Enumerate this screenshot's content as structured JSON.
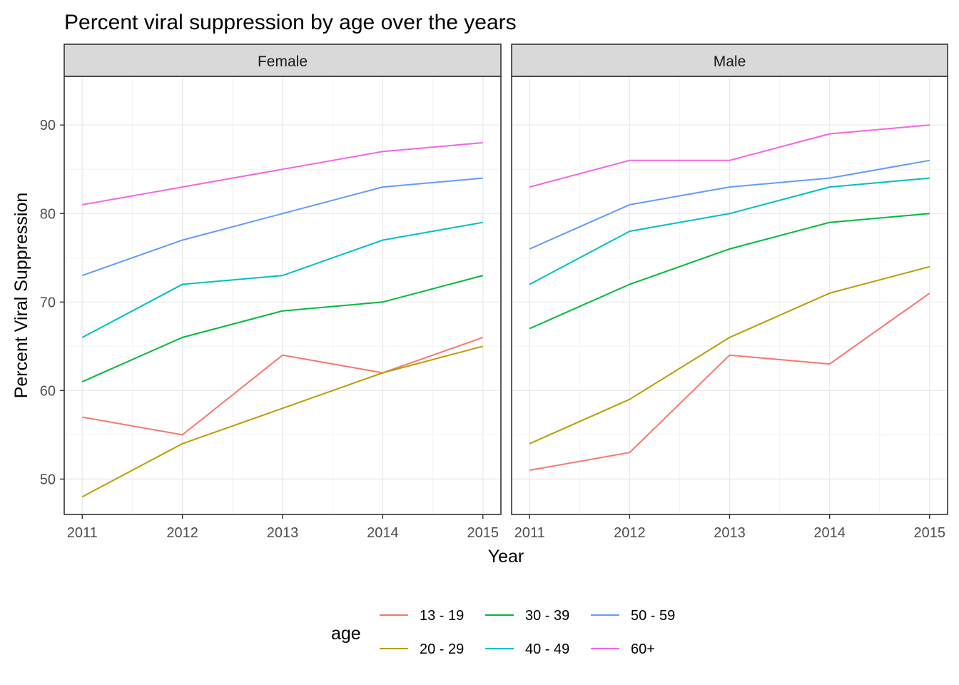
{
  "chart_data": {
    "type": "line",
    "title": "Percent viral suppression by age over the years",
    "xlabel": "Year",
    "ylabel": "Percent Viral Suppression",
    "x": [
      2011,
      2012,
      2013,
      2014,
      2015
    ],
    "x_tick_labels": [
      "2011",
      "2012",
      "2013",
      "2014",
      "2015"
    ],
    "y_ticks": [
      50,
      60,
      70,
      80,
      90
    ],
    "y_tick_labels": [
      "50",
      "60",
      "70",
      "80",
      "90"
    ],
    "xlim": [
      2010.82,
      2015.18
    ],
    "ylim": [
      46,
      95.5
    ],
    "grid": true,
    "facets": [
      {
        "label": "Female",
        "series": [
          {
            "name": "13 - 19",
            "values": [
              57,
              55,
              64,
              62,
              66
            ]
          },
          {
            "name": "20 - 29",
            "values": [
              48,
              54,
              58,
              62,
              65
            ]
          },
          {
            "name": "30 - 39",
            "values": [
              61,
              66,
              69,
              70,
              73
            ]
          },
          {
            "name": "40 - 49",
            "values": [
              66,
              72,
              73,
              77,
              79
            ]
          },
          {
            "name": "50 - 59",
            "values": [
              73,
              77,
              80,
              83,
              84
            ]
          },
          {
            "name": "60+",
            "values": [
              81,
              83,
              85,
              87,
              88
            ]
          }
        ]
      },
      {
        "label": "Male",
        "series": [
          {
            "name": "13 - 19",
            "values": [
              51,
              53,
              64,
              63,
              71
            ]
          },
          {
            "name": "20 - 29",
            "values": [
              54,
              59,
              66,
              71,
              74
            ]
          },
          {
            "name": "30 - 39",
            "values": [
              67,
              72,
              76,
              79,
              80
            ]
          },
          {
            "name": "40 - 49",
            "values": [
              72,
              78,
              80,
              83,
              84
            ]
          },
          {
            "name": "50 - 59",
            "values": [
              76,
              81,
              83,
              84,
              86
            ]
          },
          {
            "name": "60+",
            "values": [
              83,
              86,
              86,
              89,
              90
            ]
          }
        ]
      }
    ],
    "legend": {
      "title": "age",
      "placement": "bottom",
      "entries": [
        {
          "name": "13 - 19",
          "color": "#F8766D"
        },
        {
          "name": "20 - 29",
          "color": "#B79F00"
        },
        {
          "name": "30 - 39",
          "color": "#00BA38"
        },
        {
          "name": "40 - 49",
          "color": "#00BFC4"
        },
        {
          "name": "50 - 59",
          "color": "#619CFF"
        },
        {
          "name": "60+",
          "color": "#F564E3"
        }
      ]
    },
    "colors": {
      "panel_border": "#333333",
      "strip_fill": "#D9D9D9",
      "grid_major": "#EBEBEB",
      "grid_minor": "#F5F5F5"
    }
  }
}
